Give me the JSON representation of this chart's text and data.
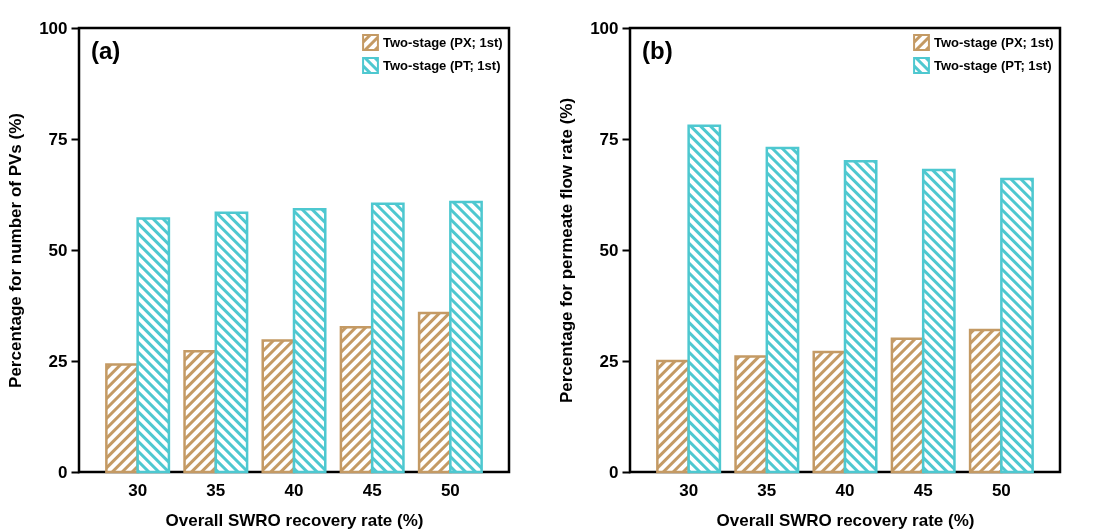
{
  "chart_data": [
    {
      "type": "bar",
      "title": "(a)",
      "categories": [
        "30",
        "35",
        "40",
        "45",
        "50"
      ],
      "xlabel": "Overall SWRO recovery rate (%)",
      "ylabel": "Percentage for number of PVs (%)",
      "ylim": [
        0,
        100
      ],
      "yticks": [
        0,
        25,
        50,
        75,
        100
      ],
      "legend": "top right",
      "series": [
        {
          "name": "Two-stage (PX; 1st)",
          "color": "#c49a64",
          "values": [
            24.2,
            27.2,
            29.6,
            32.6,
            35.8
          ]
        },
        {
          "name": "Two-stage (PT; 1st)",
          "color": "#4ec8d0",
          "values": [
            57.1,
            58.4,
            59.2,
            60.4,
            60.8
          ]
        }
      ]
    },
    {
      "type": "bar",
      "title": "(b)",
      "categories": [
        "30",
        "35",
        "40",
        "45",
        "50"
      ],
      "xlabel": "Overall SWRO recovery rate (%)",
      "ylabel": "Percentage for permeate flow rate (%)",
      "ylim": [
        0,
        100
      ],
      "yticks": [
        0,
        25,
        50,
        75,
        100
      ],
      "legend": "top right",
      "series": [
        {
          "name": "Two-stage (PX; 1st)",
          "color": "#c49a64",
          "values": [
            25,
            26,
            27,
            30,
            32
          ]
        },
        {
          "name": "Two-stage (PT; 1st)",
          "color": "#4ec8d0",
          "values": [
            78,
            73,
            70,
            68,
            66
          ]
        }
      ]
    }
  ]
}
